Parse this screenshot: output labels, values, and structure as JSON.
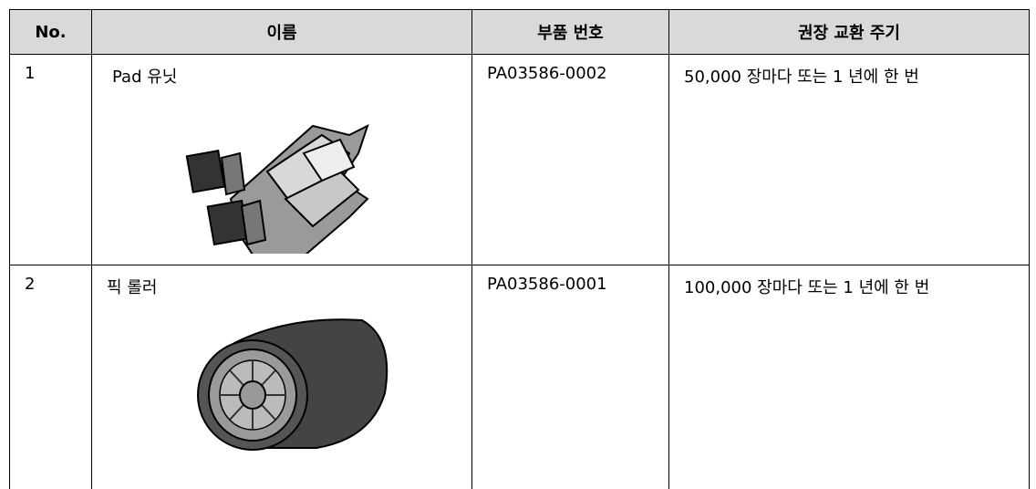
{
  "table": {
    "headers": [
      "No.",
      "이름",
      "부품 번호",
      "권장 교환 주기"
    ],
    "rows": [
      [
        "1",
        "Pad 유닛",
        "PA03586-0002",
        "50,000 장마다 또는 1 년에 한 번"
      ],
      [
        "2",
        "픽 롤러",
        "PA03586-0001",
        "100,000 장마다 또는 1 년에 한 번"
      ]
    ]
  }
}
